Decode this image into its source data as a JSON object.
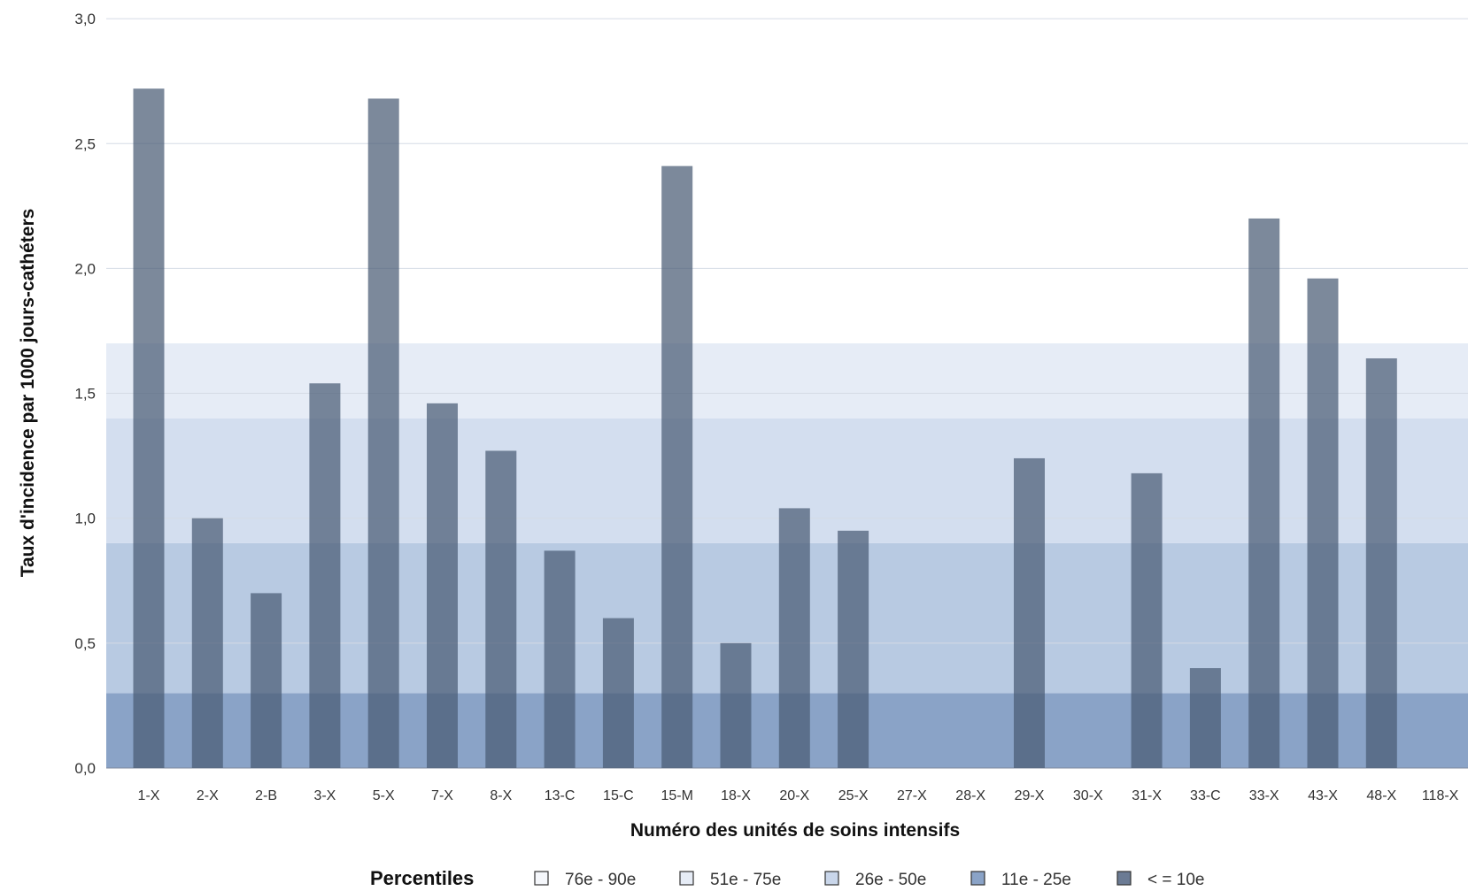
{
  "chart_data": {
    "type": "bar",
    "categories": [
      "1-X",
      "2-X",
      "2-B",
      "3-X",
      "5-X",
      "7-X",
      "8-X",
      "13-C",
      "15-C",
      "15-M",
      "18-X",
      "20-X",
      "25-X",
      "27-X",
      "28-X",
      "29-X",
      "30-X",
      "31-X",
      "33-C",
      "33-X",
      "43-X",
      "48-X",
      "118-X"
    ],
    "values": [
      2.72,
      1.0,
      0.7,
      1.54,
      2.68,
      1.46,
      1.27,
      0.87,
      0.6,
      2.41,
      0.5,
      1.04,
      0.95,
      0,
      0,
      1.24,
      0,
      1.18,
      0.4,
      2.2,
      1.96,
      1.64,
      0
    ],
    "xlabel": "Numéro des unités de soins intensifs",
    "ylabel": "Taux d'incidence par 1000 jours-cathéters",
    "ylim": [
      0,
      3.0
    ],
    "yticks": [
      "0,0",
      "0,5",
      "1,0",
      "1,5",
      "2,0",
      "2,5",
      "3,0"
    ],
    "grid": true,
    "bar_color": "#4a5b75",
    "percentile_bands": [
      {
        "label": "<= 10e",
        "from": 0.0,
        "to": 0.3,
        "color": "#8aa3c7"
      },
      {
        "label": "11e - 25e",
        "from": 0.3,
        "to": 0.9,
        "color": "#b8cae2"
      },
      {
        "label": "26e - 50e",
        "from": 0.9,
        "to": 1.4,
        "color": "#d3deef"
      },
      {
        "label": "51e - 75e",
        "from": 1.4,
        "to": 1.7,
        "color": "#e6ecf6"
      }
    ],
    "legend": {
      "title": "Percentiles",
      "placement": "bottom",
      "items": [
        {
          "label": "76e - 90e",
          "color": "#f5f7fb"
        },
        {
          "label": "51e - 75e",
          "color": "#e6ecf6"
        },
        {
          "label": "26e - 50e",
          "color": "#c9d6ea"
        },
        {
          "label": "11e - 25e",
          "color": "#8aa3c7"
        },
        {
          "label": "< = 10e",
          "color": "#6b7b94"
        }
      ]
    }
  }
}
